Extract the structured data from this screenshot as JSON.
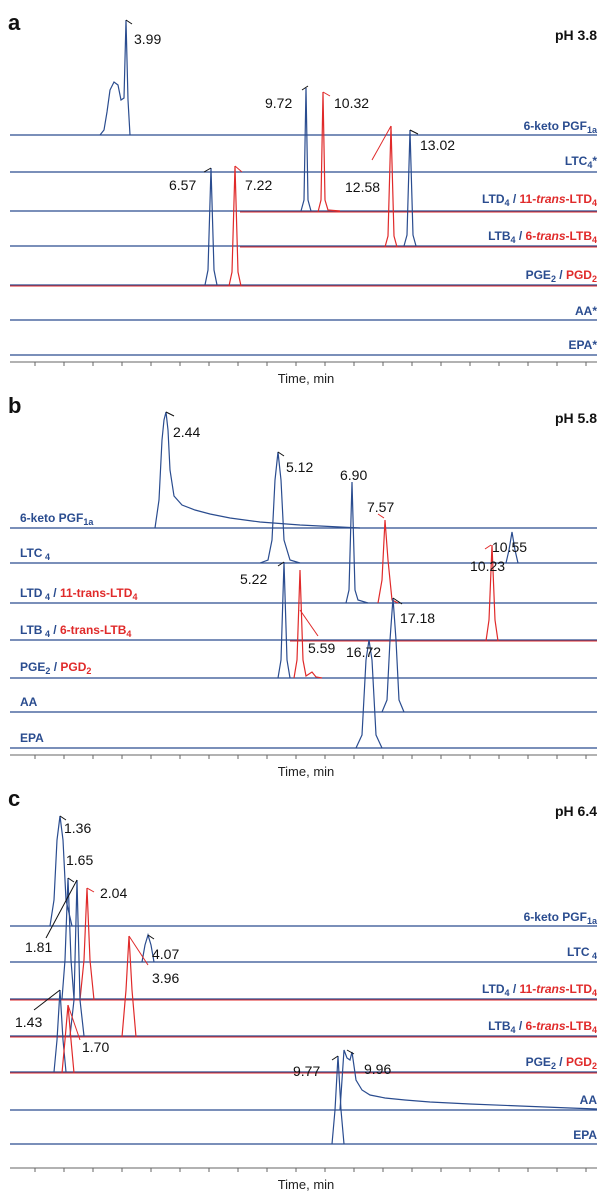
{
  "colors": {
    "blue": "#2a4c8f",
    "red": "#e02a2a",
    "text": "#111111"
  },
  "chart_data": [
    {
      "type": "line",
      "panel": "a",
      "title": "pH 3.8",
      "xlabel": "Time, min",
      "series": [
        {
          "name": "6-keto PGF1a",
          "color": "blue",
          "peaks": [
            {
              "rt": 3.99,
              "label": "3.99"
            }
          ]
        },
        {
          "name": "LTC4*",
          "color": "blue",
          "peaks": []
        },
        {
          "name": "LTD4",
          "color": "blue",
          "peaks": [
            {
              "rt": 9.72,
              "label": "9.72"
            }
          ]
        },
        {
          "name": "11-trans-LTD4",
          "color": "red",
          "peaks": [
            {
              "rt": 10.32,
              "label": "10.32"
            }
          ]
        },
        {
          "name": "LTB4",
          "color": "blue",
          "peaks": [
            {
              "rt": 13.02,
              "label": "13.02"
            }
          ]
        },
        {
          "name": "6-trans-LTB4",
          "color": "red",
          "peaks": [
            {
              "rt": 12.58,
              "label": "12.58"
            }
          ]
        },
        {
          "name": "PGE2",
          "color": "blue",
          "peaks": [
            {
              "rt": 6.57,
              "label": "6.57"
            }
          ]
        },
        {
          "name": "PGD2",
          "color": "red",
          "peaks": [
            {
              "rt": 7.22,
              "label": "7.22"
            }
          ]
        },
        {
          "name": "AA*",
          "color": "blue",
          "peaks": []
        },
        {
          "name": "EPA*",
          "color": "blue",
          "peaks": []
        }
      ]
    },
    {
      "type": "line",
      "panel": "b",
      "title": "pH 5.8",
      "xlabel": "Time, min",
      "series": [
        {
          "name": "6-keto PGF1a",
          "color": "blue",
          "peaks": [
            {
              "rt": 2.44,
              "label": "2.44"
            }
          ]
        },
        {
          "name": "LTC4",
          "color": "blue",
          "peaks": [
            {
              "rt": 10.55,
              "label": "10.55"
            }
          ]
        },
        {
          "name": "LTD4",
          "color": "blue",
          "peaks": [
            {
              "rt": 6.9,
              "label": "6.90"
            }
          ]
        },
        {
          "name": "11-trans-LTD4",
          "color": "red",
          "peaks": [
            {
              "rt": 7.57,
              "label": "7.57"
            }
          ]
        },
        {
          "name": "LTB4",
          "color": "blue",
          "peaks": [
            {
              "rt": 5.12,
              "label": "5.12"
            }
          ]
        },
        {
          "name": "6-trans-LTB4",
          "color": "red",
          "peaks": [
            {
              "rt": 10.23,
              "label": "10.23"
            }
          ]
        },
        {
          "name": "PGE2",
          "color": "blue",
          "peaks": [
            {
              "rt": 5.22,
              "label": "5.22"
            }
          ]
        },
        {
          "name": "PGD2",
          "color": "red",
          "peaks": [
            {
              "rt": 5.59,
              "label": "5.59"
            }
          ]
        },
        {
          "name": "AA",
          "color": "blue",
          "peaks": [
            {
              "rt": 17.18,
              "label": "17.18"
            }
          ]
        },
        {
          "name": "EPA",
          "color": "blue",
          "peaks": [
            {
              "rt": 16.72,
              "label": "16.72"
            }
          ]
        }
      ]
    },
    {
      "type": "line",
      "panel": "c",
      "title": "pH 6.4",
      "xlabel": "Time, min",
      "series": [
        {
          "name": "6-keto PGF1a",
          "color": "blue",
          "peaks": [
            {
              "rt": 1.36,
              "label": "1.36"
            }
          ]
        },
        {
          "name": "LTC4",
          "color": "blue",
          "peaks": [
            {
              "rt": 4.07,
              "label": "4.07"
            }
          ]
        },
        {
          "name": "LTD4",
          "color": "blue",
          "peaks": [
            {
              "rt": 1.65,
              "label": "1.65"
            }
          ]
        },
        {
          "name": "11-trans-LTD4",
          "color": "red",
          "peaks": [
            {
              "rt": 2.04,
              "label": "2.04"
            }
          ]
        },
        {
          "name": "LTB4",
          "color": "blue",
          "peaks": [
            {
              "rt": 1.81,
              "label": "1.81"
            }
          ]
        },
        {
          "name": "6-trans-LTB4",
          "color": "red",
          "peaks": [
            {
              "rt": 3.96,
              "label": "3.96"
            }
          ]
        },
        {
          "name": "PGE2",
          "color": "blue",
          "peaks": [
            {
              "rt": 1.43,
              "label": "1.43"
            }
          ]
        },
        {
          "name": "PGD2",
          "color": "red",
          "peaks": [
            {
              "rt": 1.7,
              "label": "1.70"
            }
          ]
        },
        {
          "name": "AA",
          "color": "blue",
          "peaks": [
            {
              "rt": 9.96,
              "label": "9.96"
            }
          ]
        },
        {
          "name": "EPA",
          "color": "blue",
          "peaks": [
            {
              "rt": 9.77,
              "label": "9.77"
            }
          ]
        }
      ]
    }
  ]
}
